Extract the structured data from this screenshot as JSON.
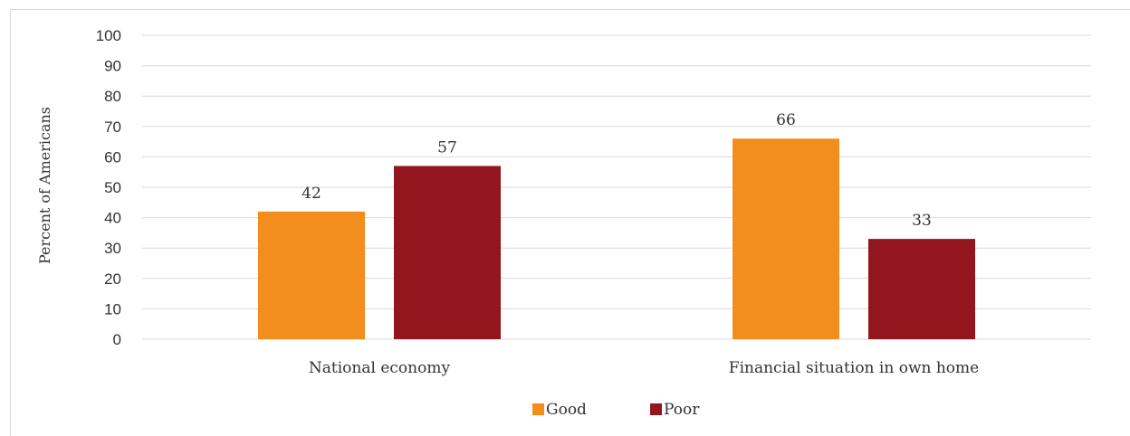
{
  "chart_data": {
    "type": "bar",
    "title": "",
    "xlabel": "",
    "ylabel": "Percent of Americans",
    "categories": [
      "National economy",
      "Financial situation in own home"
    ],
    "series": [
      {
        "name": "Good",
        "values": [
          42,
          66
        ],
        "color": "#f28e1e"
      },
      {
        "name": "Poor",
        "values": [
          57,
          33
        ],
        "color": "#93161f"
      }
    ],
    "ylim": [
      0,
      100
    ],
    "yticks": [
      0,
      10,
      20,
      30,
      40,
      50,
      60,
      70,
      80,
      90,
      100
    ],
    "grid": true,
    "gridline_color": "#d9d9d9",
    "legend_position": "bottom"
  }
}
